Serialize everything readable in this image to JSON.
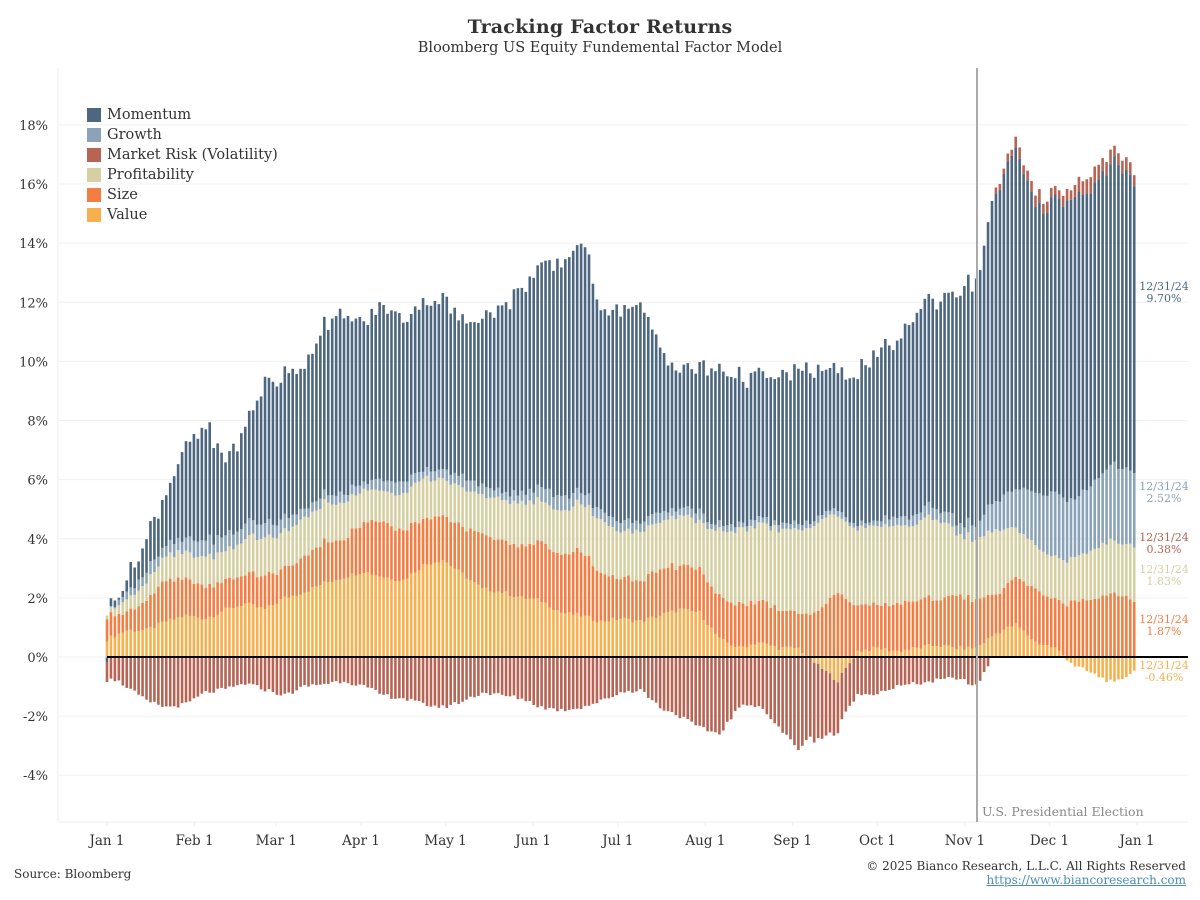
{
  "title": "Tracking Factor Returns",
  "subtitle": "Bloomberg US Equity Fundemental Factor Model",
  "source": "Source: Bloomberg",
  "copyright": "© 2025 Bianco Research, L.L.C. All Rights Reserved",
  "url": "https://www.biancoresearch.com",
  "annotation": {
    "label": "U.S. Presidential Election",
    "date_index": 44.0
  },
  "end_labels": [
    {
      "series": "Momentum",
      "date": "12/31/24",
      "value": "9.70%",
      "color": "#4e6780"
    },
    {
      "series": "Growth",
      "date": "12/31/24",
      "value": "2.52%",
      "color": "#8ba3b8"
    },
    {
      "series": "Market Risk (Volatility)",
      "date": "12/31/24",
      "value": "0.38%",
      "color": "#b86454"
    },
    {
      "series": "Profitability",
      "date": "12/31/24",
      "value": "1.83%",
      "color": "#d6cfa3"
    },
    {
      "series": "Size",
      "date": "12/31/24",
      "value": "1.87%",
      "color": "#f37e43"
    },
    {
      "series": "Value",
      "date": "12/31/24",
      "value": "-0.46%",
      "color": "#f8b04f"
    }
  ],
  "chart_data": {
    "type": "bar",
    "stacked": true,
    "title": "Tracking Factor Returns",
    "subtitle": "Bloomberg US Equity Fundemental Factor Model",
    "xlabel": "",
    "ylabel": "",
    "ylim": [
      -5.5,
      19.5
    ],
    "yticks": [
      "-4%",
      "-2%",
      "0%",
      "2%",
      "4%",
      "6%",
      "8%",
      "10%",
      "12%",
      "14%",
      "16%",
      "18%"
    ],
    "ytick_values": [
      -4,
      -2,
      0,
      2,
      4,
      6,
      8,
      10,
      12,
      14,
      16,
      18
    ],
    "xticks": [
      "Jan 1",
      "Feb 1",
      "Mar 1",
      "Apr 1",
      "May 1",
      "Jun 1",
      "Jul 1",
      "Aug 1",
      "Sep 1",
      "Oct 1",
      "Nov 1",
      "Dec 1",
      "Jan 1"
    ],
    "xtick_week_index": [
      0,
      4.43,
      8.57,
      12.86,
      17.14,
      21.57,
      25.86,
      30.29,
      34.71,
      39.0,
      43.43,
      47.71,
      52.14
    ],
    "grid": true,
    "legend_position": "top-left",
    "frequency": "weekly samples of daily cumulative returns, 2024",
    "x": [
      "W1",
      "W2",
      "W3",
      "W4",
      "W5",
      "W6",
      "W7",
      "W8",
      "W9",
      "W10",
      "W11",
      "W12",
      "W13",
      "W14",
      "W15",
      "W16",
      "W17",
      "W18",
      "W19",
      "W20",
      "W21",
      "W22",
      "W23",
      "W24",
      "W25",
      "W26",
      "W27",
      "W28",
      "W29",
      "W30",
      "W31",
      "W32",
      "W33",
      "W34",
      "W35",
      "W36",
      "W37",
      "W38",
      "W39",
      "W40",
      "W41",
      "W42",
      "W43",
      "W44",
      "W45",
      "W46",
      "W47",
      "W48",
      "W49",
      "W50",
      "W51",
      "W52",
      "W53"
    ],
    "series": [
      {
        "name": "Value",
        "color": "#f8b04f",
        "values": [
          0.6,
          0.9,
          0.9,
          1.2,
          1.4,
          1.3,
          1.6,
          1.8,
          1.6,
          2.0,
          2.2,
          2.5,
          2.7,
          2.9,
          2.7,
          2.6,
          3.1,
          3.3,
          2.8,
          2.3,
          2.2,
          2.0,
          1.9,
          1.5,
          1.4,
          1.2,
          1.3,
          1.2,
          1.4,
          1.6,
          1.5,
          0.6,
          0.3,
          0.5,
          0.3,
          0.3,
          -0.3,
          -0.8,
          0.2,
          0.3,
          0.2,
          0.3,
          0.4,
          0.3,
          0.3,
          0.8,
          1.1,
          0.5,
          0.3,
          -0.3,
          -0.6,
          -0.9,
          -0.46
        ]
      },
      {
        "name": "Size",
        "color": "#f37e43",
        "values": [
          0.8,
          0.6,
          1.0,
          1.4,
          1.2,
          1.1,
          1.0,
          1.0,
          1.1,
          1.0,
          1.2,
          1.4,
          1.3,
          1.7,
          1.9,
          1.7,
          1.6,
          1.5,
          1.6,
          1.8,
          1.8,
          1.7,
          2.0,
          1.9,
          2.2,
          1.6,
          1.4,
          1.4,
          1.6,
          1.5,
          1.5,
          1.4,
          1.5,
          1.4,
          1.3,
          1.2,
          1.6,
          2.2,
          1.6,
          1.4,
          1.6,
          1.6,
          1.6,
          1.8,
          1.6,
          1.3,
          1.6,
          1.8,
          1.6,
          1.9,
          2.0,
          2.2,
          1.87
        ]
      },
      {
        "name": "Profitability",
        "color": "#d6cfa3",
        "values": [
          0.2,
          0.4,
          0.6,
          0.8,
          0.9,
          1.0,
          1.0,
          1.2,
          1.3,
          1.2,
          1.3,
          1.3,
          1.2,
          1.1,
          1.0,
          1.2,
          1.4,
          1.2,
          1.3,
          1.3,
          1.4,
          1.4,
          1.4,
          1.5,
          1.6,
          1.8,
          1.6,
          1.7,
          1.6,
          1.7,
          1.6,
          2.2,
          2.5,
          2.6,
          2.7,
          2.8,
          3.0,
          2.6,
          2.6,
          2.7,
          2.6,
          2.6,
          2.8,
          2.1,
          2.0,
          2.2,
          1.6,
          1.5,
          1.4,
          1.5,
          1.7,
          1.8,
          1.83
        ]
      },
      {
        "name": "Growth",
        "color": "#8ba3b8",
        "values": [
          0.0,
          0.2,
          0.4,
          0.4,
          0.5,
          0.6,
          0.5,
          0.5,
          0.5,
          0.5,
          0.3,
          0.3,
          0.3,
          0.2,
          0.4,
          0.4,
          0.3,
          0.3,
          0.4,
          0.3,
          0.3,
          0.3,
          0.5,
          0.5,
          0.4,
          0.3,
          0.3,
          0.3,
          0.3,
          0.2,
          0.3,
          0.2,
          0.2,
          0.2,
          0.2,
          0.2,
          0.2,
          0.2,
          0.1,
          0.2,
          0.3,
          0.3,
          0.4,
          0.4,
          0.5,
          1.0,
          1.3,
          1.8,
          2.2,
          2.0,
          2.3,
          2.6,
          2.52
        ]
      },
      {
        "name": "Momentum",
        "color": "#4e6780",
        "values": [
          0.0,
          0.5,
          1.1,
          1.8,
          3.1,
          3.8,
          2.6,
          3.2,
          4.8,
          4.8,
          4.9,
          5.8,
          6.0,
          5.4,
          5.9,
          5.5,
          5.7,
          5.8,
          5.2,
          5.8,
          6.2,
          7.0,
          7.4,
          7.9,
          8.5,
          6.9,
          7.2,
          7.3,
          5.6,
          4.6,
          4.9,
          5.3,
          5.0,
          4.8,
          4.9,
          5.2,
          5.0,
          4.6,
          5.2,
          5.6,
          5.9,
          6.9,
          7.0,
          7.8,
          8.2,
          10.5,
          11.4,
          9.6,
          9.9,
          10.3,
          10.0,
          10.2,
          9.7
        ]
      },
      {
        "name": "Market Risk (Volatility)",
        "color": "#b86454",
        "values": [
          -0.6,
          -1.0,
          -1.5,
          -1.7,
          -1.6,
          -1.2,
          -1.1,
          -0.9,
          -1.1,
          -1.3,
          -1.0,
          -0.9,
          -0.8,
          -1.0,
          -1.3,
          -1.4,
          -1.6,
          -1.7,
          -1.5,
          -1.2,
          -1.3,
          -1.4,
          -1.7,
          -1.8,
          -1.7,
          -1.5,
          -1.2,
          -1.1,
          -1.7,
          -2.0,
          -2.4,
          -2.6,
          -1.7,
          -1.6,
          -2.4,
          -3.1,
          -2.5,
          -1.7,
          -1.3,
          -1.2,
          -1.0,
          -0.9,
          -0.8,
          -0.7,
          -1.0,
          0.2,
          0.3,
          0.4,
          0.3,
          0.4,
          0.5,
          0.4,
          0.38
        ]
      }
    ]
  },
  "legend": [
    {
      "label": "Momentum",
      "color": "#4e6780"
    },
    {
      "label": "Growth",
      "color": "#8ba3b8"
    },
    {
      "label": "Market Risk (Volatility)",
      "color": "#b86454"
    },
    {
      "label": "Profitability",
      "color": "#d6cfa3"
    },
    {
      "label": "Size",
      "color": "#f37e43"
    },
    {
      "label": "Value",
      "color": "#f8b04f"
    }
  ]
}
